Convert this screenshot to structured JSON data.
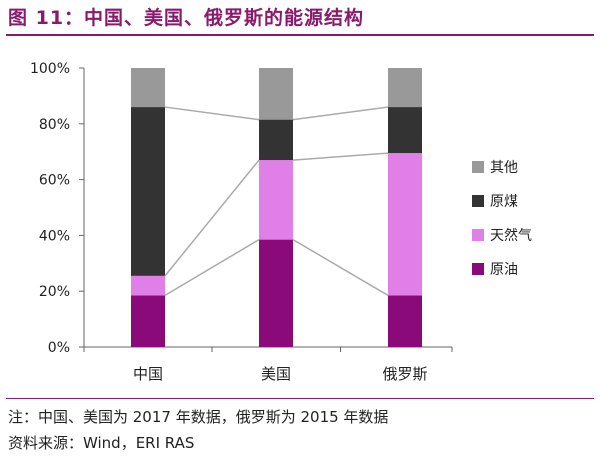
{
  "figure": {
    "title": "图 11：中国、美国、俄罗斯的能源结构",
    "note": "注：中国、美国为 2017 年数据，俄罗斯为 2015 年数据",
    "source": "资料来源：Wind，ERI RAS"
  },
  "colors": {
    "title": "#8a1a6e",
    "other": "#999999",
    "coal": "#333333",
    "gas": "#e07fe8",
    "oil": "#8a0a7a",
    "connector": "#aaaaaa"
  },
  "chart_data": {
    "type": "bar",
    "stacked": true,
    "percent": true,
    "categories": [
      "中国",
      "美国",
      "俄罗斯"
    ],
    "series": [
      {
        "name": "原油",
        "values": [
          18.5,
          38.5,
          18.5
        ],
        "color": "#8a0a7a"
      },
      {
        "name": "天然气",
        "values": [
          7,
          28.5,
          51
        ],
        "color": "#e07fe8"
      },
      {
        "name": "原煤",
        "values": [
          60.5,
          14.5,
          16.5
        ],
        "color": "#333333"
      },
      {
        "name": "其他",
        "values": [
          14,
          18.5,
          14
        ],
        "color": "#999999"
      }
    ],
    "legend_order": [
      "其他",
      "原煤",
      "天然气",
      "原油"
    ],
    "legend_position": "right",
    "ylim": [
      0,
      100
    ],
    "yticks": [
      "0%",
      "20%",
      "40%",
      "60%",
      "80%",
      "100%"
    ],
    "xlabel": "",
    "ylabel": "",
    "connector_lines": true,
    "grid": false
  }
}
